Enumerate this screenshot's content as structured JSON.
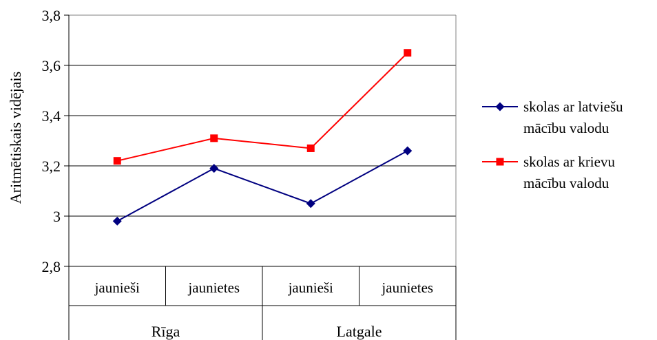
{
  "chart_data": {
    "type": "line",
    "ylabel": "Aritmētiskais vidējais",
    "ylim": [
      2.8,
      3.8
    ],
    "yticks": [
      "2,8",
      "3",
      "3,2",
      "3,4",
      "3,6",
      "3,8"
    ],
    "ytick_values": [
      2.8,
      3.0,
      3.2,
      3.4,
      3.6,
      3.8
    ],
    "grid": true,
    "legend_position": "right",
    "categories": [
      "jaunieši",
      "jaunietes",
      "jaunieši",
      "jaunietes"
    ],
    "groups": [
      {
        "label": "Rīga",
        "span": 2
      },
      {
        "label": "Latgale",
        "span": 2
      }
    ],
    "series": [
      {
        "name_lines": [
          "skolas ar latviešu",
          "mācību valodu"
        ],
        "color": "#000080",
        "marker": "diamond",
        "values": [
          2.98,
          3.19,
          3.05,
          3.26
        ]
      },
      {
        "name_lines": [
          "skolas ar krievu",
          "mācību valodu"
        ],
        "color": "#ff0000",
        "marker": "square",
        "values": [
          3.22,
          3.31,
          3.27,
          3.65
        ]
      }
    ]
  }
}
